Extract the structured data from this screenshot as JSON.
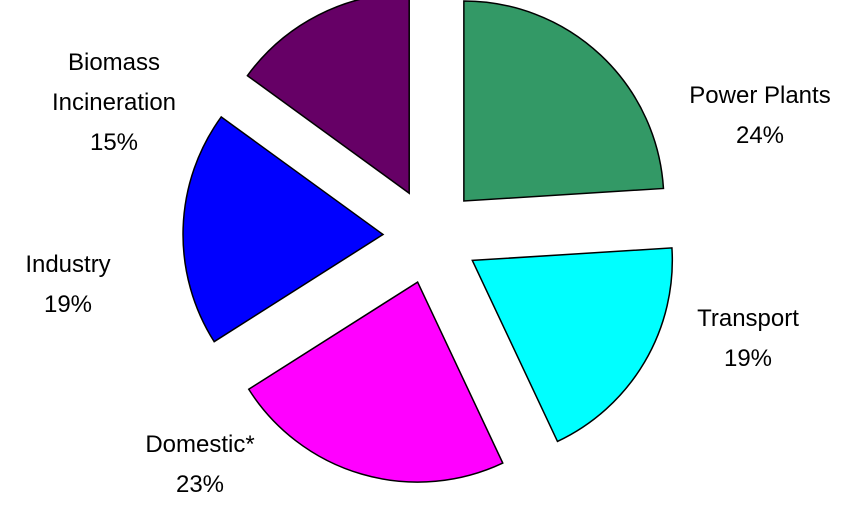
{
  "chart_data": {
    "type": "pie",
    "title": "",
    "exploded": true,
    "legend": "none",
    "slices": [
      {
        "label": "Power Plants",
        "value_label": "24%",
        "value": 24,
        "color": "#339966"
      },
      {
        "label": "Transport",
        "value_label": "19%",
        "value": 19,
        "color": "#00FFFF"
      },
      {
        "label": "Domestic*",
        "value_label": "23%",
        "value": 23,
        "color": "#FF00FF"
      },
      {
        "label": "Industry",
        "value_label": "19%",
        "value": 19,
        "color": "#0000FF"
      },
      {
        "label": "Biomass Incineration",
        "label_lines": [
          "Biomass",
          "Incineration"
        ],
        "value_label": "15%",
        "value": 15,
        "color": "#660066"
      }
    ]
  }
}
